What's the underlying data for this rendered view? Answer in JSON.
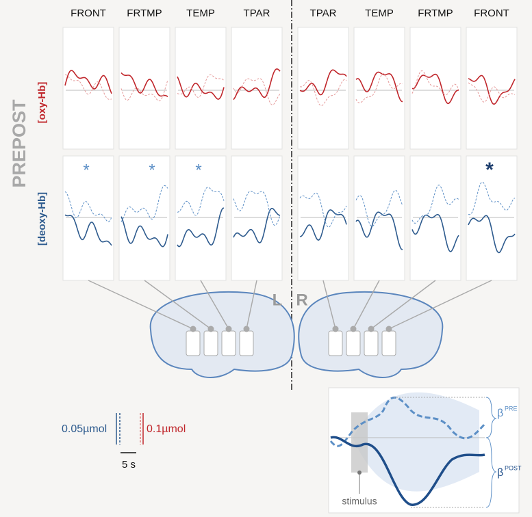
{
  "title": "PREPOST",
  "columns": [
    "FRONT",
    "FRTMP",
    "TEMP",
    "TPAR",
    "TPAR",
    "TEMP",
    "FRTMP",
    "FRONT"
  ],
  "rows": [
    "[oxy-Hb]",
    "[deoxy-Hb]"
  ],
  "significance": [
    "*",
    "*",
    "*",
    "*"
  ],
  "hemispheres": {
    "left": "L",
    "right": "R"
  },
  "scale": {
    "deoxy": "0.05µmol",
    "oxy": "0.1µmol",
    "time": "5 s"
  },
  "legend": {
    "stimulus": "stimulus",
    "beta_symbol": "β",
    "beta_pre": "PRE",
    "beta_post": "POST"
  }
}
